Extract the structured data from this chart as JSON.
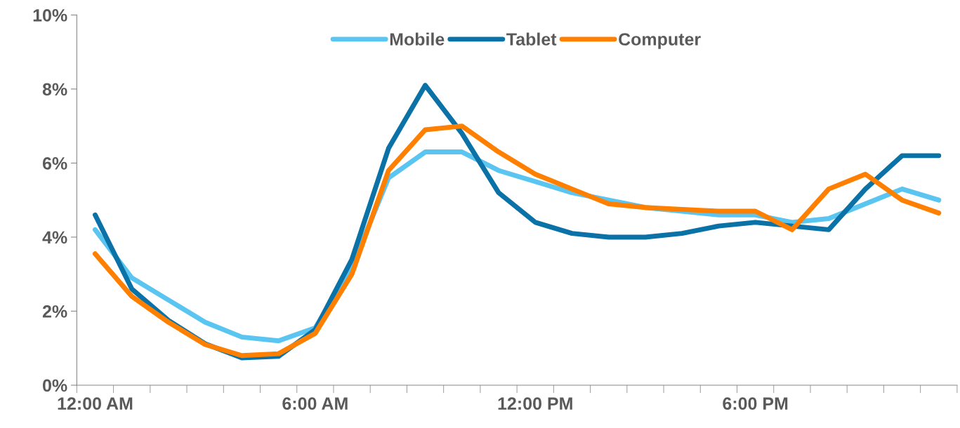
{
  "chart_data": {
    "type": "line",
    "categories": [
      "12:00 AM",
      null,
      null,
      null,
      null,
      null,
      "6:00 AM",
      null,
      null,
      null,
      null,
      null,
      "12:00 PM",
      null,
      null,
      null,
      null,
      null,
      "6:00 PM",
      null,
      null,
      null,
      null,
      null
    ],
    "series": [
      {
        "name": "Mobile",
        "color": "#5bc5f2",
        "values": [
          4.2,
          2.9,
          2.3,
          1.7,
          1.3,
          1.2,
          1.55,
          3.2,
          5.6,
          6.3,
          6.3,
          5.8,
          5.5,
          5.2,
          5.0,
          4.8,
          4.7,
          4.6,
          4.6,
          4.4,
          4.5,
          4.9,
          5.3,
          5.0
        ]
      },
      {
        "name": "Tablet",
        "color": "#0a72a6",
        "values": [
          4.6,
          2.6,
          1.75,
          1.12,
          0.74,
          0.78,
          1.5,
          3.4,
          6.4,
          8.1,
          6.8,
          5.2,
          4.4,
          4.1,
          4.0,
          4.0,
          4.1,
          4.3,
          4.4,
          4.3,
          4.2,
          5.3,
          6.2,
          6.2
        ]
      },
      {
        "name": "Computer",
        "color": "#ff8000",
        "values": [
          3.55,
          2.4,
          1.7,
          1.1,
          0.8,
          0.85,
          1.4,
          3.0,
          5.8,
          6.9,
          7.0,
          6.3,
          5.7,
          5.3,
          4.9,
          4.8,
          4.75,
          4.7,
          4.7,
          4.2,
          5.3,
          5.7,
          5.0,
          4.65
        ]
      }
    ],
    "ylim": [
      0,
      10
    ],
    "yticks": [
      {
        "value": 0,
        "label": "0%"
      },
      {
        "value": 2,
        "label": "2%"
      },
      {
        "value": 4,
        "label": "4%"
      },
      {
        "value": 6,
        "label": "6%"
      },
      {
        "value": 8,
        "label": "8%"
      },
      {
        "value": 10,
        "label": "10%"
      }
    ],
    "legend": "top",
    "line_style": "solid",
    "marker": "none"
  }
}
